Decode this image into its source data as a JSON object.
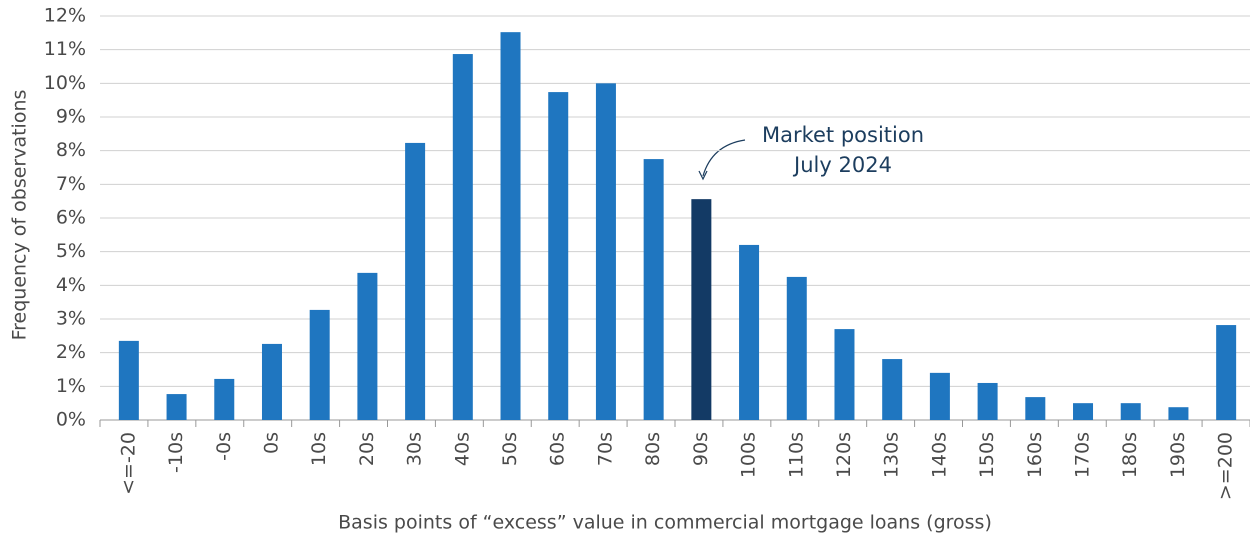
{
  "chart_data": {
    "type": "bar",
    "y_label": "Frequency of observations",
    "x_label": "Basis points of “excess” value in commercial mortgage loans (gross)",
    "annotation": [
      "Market position",
      "July 2024"
    ],
    "categories": [
      "<=-20",
      "-10s",
      "-0s",
      "0s",
      "10s",
      "20s",
      "30s",
      "40s",
      "50s",
      "60s",
      "70s",
      "80s",
      "90s",
      "100s",
      "110s",
      "120s",
      "130s",
      "140s",
      "150s",
      "160s",
      "170s",
      "180s",
      "190s",
      ">=200"
    ],
    "values": [
      2.35,
      0.77,
      1.22,
      2.26,
      3.27,
      4.37,
      8.23,
      10.87,
      11.52,
      9.74,
      10.0,
      7.75,
      6.56,
      5.2,
      4.25,
      2.7,
      1.81,
      1.4,
      1.1,
      0.68,
      0.5,
      0.5,
      0.38,
      2.82
    ],
    "colors": [
      "#1f76c0",
      "#1f76c0",
      "#1f76c0",
      "#1f76c0",
      "#1f76c0",
      "#1f76c0",
      "#1f76c0",
      "#1f76c0",
      "#1f76c0",
      "#1f76c0",
      "#1f76c0",
      "#1f76c0",
      "#133a65",
      "#1f76c0",
      "#1f76c0",
      "#1f76c0",
      "#1f76c0",
      "#1f76c0",
      "#1f76c0",
      "#1f76c0",
      "#1f76c0",
      "#1f76c0",
      "#1f76c0",
      "#1f76c0"
    ],
    "ylim": [
      0,
      12
    ],
    "yticks": [
      {
        "value": 0,
        "label": "0%"
      },
      {
        "value": 1,
        "label": "1%"
      },
      {
        "value": 2,
        "label": "2%"
      },
      {
        "value": 3,
        "label": "3%"
      },
      {
        "value": 4,
        "label": "4%"
      },
      {
        "value": 5,
        "label": "5%"
      },
      {
        "value": 6,
        "label": "6%"
      },
      {
        "value": 7,
        "label": "7%"
      },
      {
        "value": 8,
        "label": "8%"
      },
      {
        "value": 9,
        "label": "9%"
      },
      {
        "value": 10,
        "label": "10%"
      },
      {
        "value": 11,
        "label": "11%"
      },
      {
        "value": 12,
        "label": "12%"
      }
    ],
    "grid": true
  }
}
